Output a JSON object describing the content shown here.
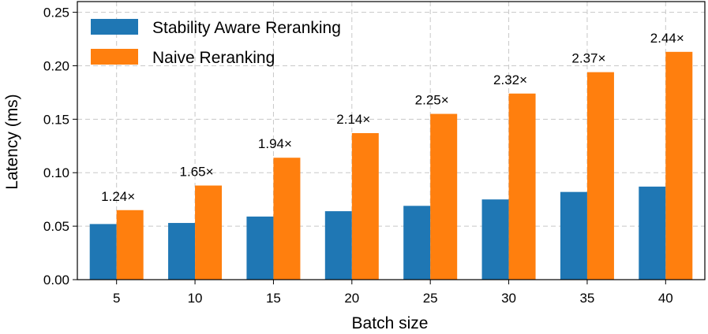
{
  "chart_data": {
    "type": "bar",
    "title": "",
    "xlabel": "Batch size",
    "ylabel": "Latency (ms)",
    "categories": [
      "5",
      "10",
      "15",
      "20",
      "25",
      "30",
      "35",
      "40"
    ],
    "ylim": [
      0,
      0.26
    ],
    "yticks": [
      0.0,
      0.05,
      0.1,
      0.15,
      0.2,
      0.25
    ],
    "ytick_labels": [
      "0.00",
      "0.05",
      "0.10",
      "0.15",
      "0.20",
      "0.25"
    ],
    "grid": true,
    "legend_position": "top-left",
    "series": [
      {
        "name": "Stability Aware Reranking",
        "color": "#1f77b4",
        "values": [
          0.052,
          0.053,
          0.059,
          0.064,
          0.069,
          0.075,
          0.082,
          0.087
        ]
      },
      {
        "name": "Naive Reranking",
        "color": "#ff7f0e",
        "values": [
          0.065,
          0.088,
          0.114,
          0.137,
          0.155,
          0.174,
          0.194,
          0.213
        ]
      }
    ],
    "annotations": [
      "1.24×",
      "1.65×",
      "1.94×",
      "2.14×",
      "2.25×",
      "2.32×",
      "2.37×",
      "2.44×"
    ]
  }
}
